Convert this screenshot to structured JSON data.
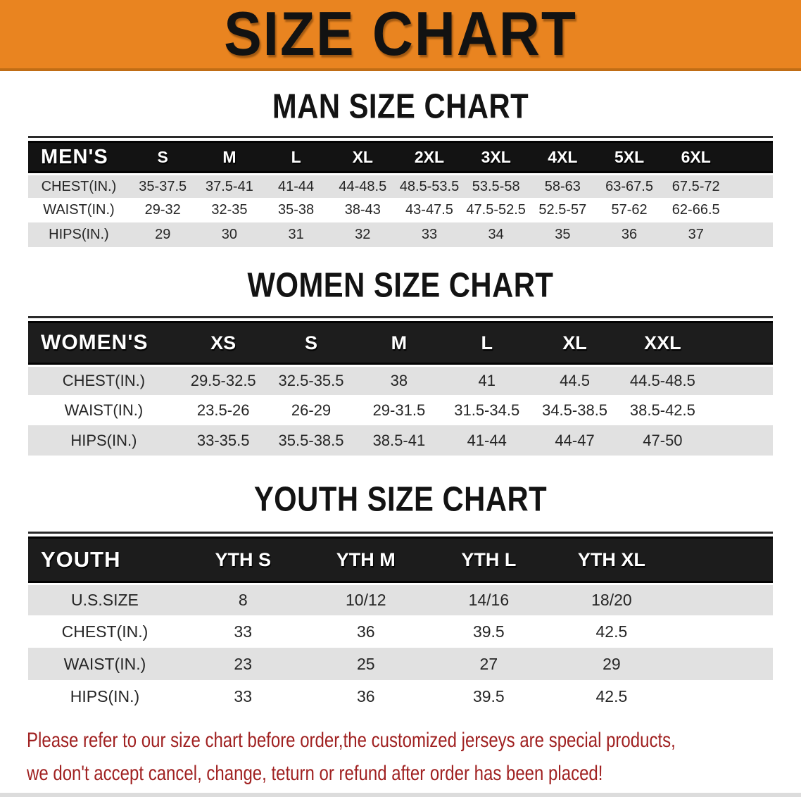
{
  "banner": {
    "title": "SIZE CHART",
    "bg_color": "#E98420",
    "text_color": "#121212"
  },
  "sections": [
    {
      "id": "men",
      "heading": "MAN SIZE CHART",
      "table": {
        "header": [
          "MEN'S",
          "S",
          "M",
          "L",
          "XL",
          "2XL",
          "3XL",
          "4XL",
          "5XL",
          "6XL"
        ],
        "rows": [
          [
            "CHEST(IN.)",
            "35-37.5",
            "37.5-41",
            "41-44",
            "44-48.5",
            "48.5-53.5",
            "53.5-58",
            "58-63",
            "63-67.5",
            "67.5-72"
          ],
          [
            "WAIST(IN.)",
            "29-32",
            "32-35",
            "35-38",
            "38-43",
            "43-47.5",
            "47.5-52.5",
            "52.5-57",
            "57-62",
            "62-66.5"
          ],
          [
            "HIPS(IN.)",
            "29",
            "30",
            "31",
            "32",
            "33",
            "34",
            "35",
            "36",
            "37"
          ]
        ]
      }
    },
    {
      "id": "women",
      "heading": "WOMEN SIZE CHART",
      "table": {
        "header": [
          "WOMEN'S",
          "XS",
          "S",
          "M",
          "L",
          "XL",
          "XXL"
        ],
        "rows": [
          [
            "CHEST(IN.)",
            "29.5-32.5",
            "32.5-35.5",
            "38",
            "41",
            "44.5",
            "44.5-48.5"
          ],
          [
            "WAIST(IN.)",
            "23.5-26",
            "26-29",
            "29-31.5",
            "31.5-34.5",
            "34.5-38.5",
            "38.5-42.5"
          ],
          [
            "HIPS(IN.)",
            "33-35.5",
            "35.5-38.5",
            "38.5-41",
            "41-44",
            "44-47",
            "47-50"
          ]
        ]
      }
    },
    {
      "id": "youth",
      "heading": "YOUTH SIZE CHART",
      "table": {
        "header": [
          "YOUTH",
          "YTH S",
          "YTH M",
          "YTH L",
          "YTH XL"
        ],
        "rows": [
          [
            "U.S.SIZE",
            "8",
            "10/12",
            "14/16",
            "18/20"
          ],
          [
            "CHEST(IN.)",
            "33",
            "36",
            "39.5",
            "42.5"
          ],
          [
            "WAIST(IN.)",
            "23",
            "25",
            "27",
            "29"
          ],
          [
            "HIPS(IN.)",
            "33",
            "36",
            "39.5",
            "42.5"
          ]
        ]
      }
    }
  ],
  "disclaimer": {
    "lines": [
      "Please refer to our size chart before order,the customized jerseys are special products,",
      "we don't accept cancel, change, teturn or refund after order has been placed!"
    ],
    "text_color": "#A02121"
  }
}
